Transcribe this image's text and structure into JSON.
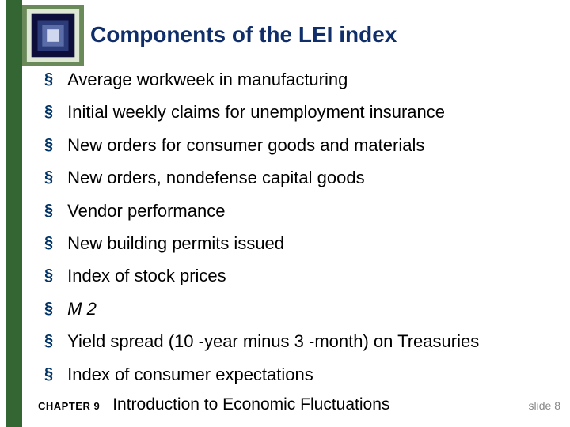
{
  "colors": {
    "green_bar": "#336633",
    "title_color": "#0f2e6a",
    "bullet_color": "#003366",
    "body_text": "#000000",
    "slide_num_color": "#888888",
    "background": "#ffffff",
    "graphic_outer": "#6a8a5a",
    "graphic_mid": "#0e0e3a",
    "graphic_inner1": "#2b3b7a",
    "graphic_inner2": "#5b6da8",
    "graphic_core": "#cfd8ee"
  },
  "title": "Components of the LEI index",
  "items": [
    {
      "text": "Average workweek in manufacturing",
      "italic": false
    },
    {
      "text": "Initial weekly claims for unemployment insurance",
      "italic": false
    },
    {
      "text": "New orders for consumer goods and materials",
      "italic": false
    },
    {
      "text": "New orders, nondefense capital goods",
      "italic": false
    },
    {
      "text": "Vendor performance",
      "italic": false
    },
    {
      "text": "New building permits issued",
      "italic": false
    },
    {
      "text": "Index of stock prices",
      "italic": false
    },
    {
      "text": "M 2",
      "italic": true
    },
    {
      "text": "Yield spread (10 -year minus 3 -month) on Treasuries",
      "italic": false
    },
    {
      "text": "Index of consumer expectations",
      "italic": false
    }
  ],
  "footer": {
    "chapter": "CHAPTER 9",
    "chapter_title": "Introduction to Economic Fluctuations",
    "slide": "slide 8"
  }
}
